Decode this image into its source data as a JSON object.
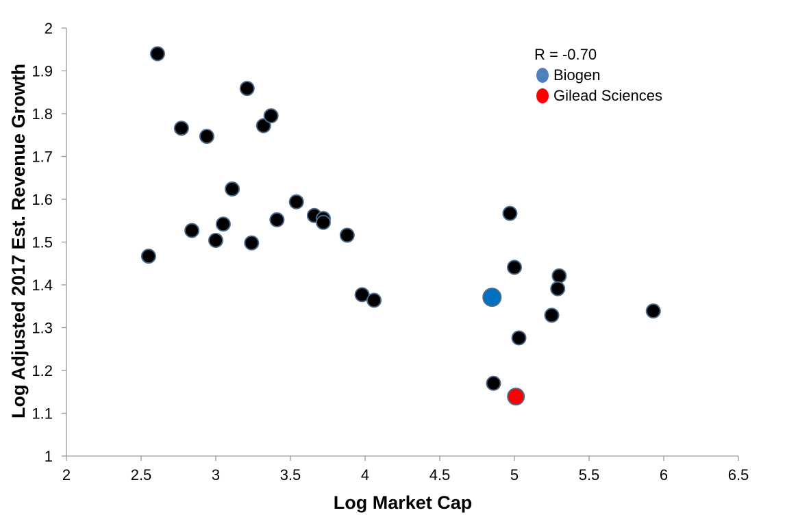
{
  "chart_data": {
    "type": "scatter",
    "title": "",
    "xlabel": "Log Market Cap",
    "ylabel": "Log Adjusted 2017 Est. Revenue Growth",
    "xlim": [
      2,
      6.5
    ],
    "ylim": [
      1,
      2
    ],
    "x_ticks": [
      "2",
      "2.5",
      "3",
      "3.5",
      "4",
      "4.5",
      "5",
      "5.5",
      "6",
      "6.5"
    ],
    "y_ticks": [
      "1",
      "1.1",
      "1.2",
      "1.3",
      "1.4",
      "1.5",
      "1.6",
      "1.7",
      "1.8",
      "1.9",
      "2"
    ],
    "grid": false,
    "legend_position": "top-right",
    "annotation": "R = -0.70",
    "colors": {
      "default_point": "#000000",
      "point_outline": "#4a6a8a",
      "biogen": "#0070c0",
      "gilead": "#ff0000",
      "biogen_legend": "#4f81bd"
    },
    "series": [
      {
        "points": [
          [
            2.55,
            1.467
          ],
          [
            2.61,
            1.94
          ],
          [
            2.77,
            1.766
          ],
          [
            2.84,
            1.527
          ],
          [
            2.94,
            1.747
          ],
          [
            3.0,
            1.504
          ],
          [
            3.05,
            1.542
          ],
          [
            3.11,
            1.624
          ],
          [
            3.21,
            1.859
          ],
          [
            3.24,
            1.498
          ],
          [
            3.32,
            1.772
          ],
          [
            3.37,
            1.795
          ],
          [
            3.41,
            1.552
          ],
          [
            3.54,
            1.594
          ],
          [
            3.66,
            1.562
          ],
          [
            3.72,
            1.555
          ],
          [
            3.72,
            1.546
          ],
          [
            3.88,
            1.516
          ],
          [
            3.98,
            1.377
          ],
          [
            4.06,
            1.364
          ],
          [
            4.97,
            1.567
          ],
          [
            5.0,
            1.441
          ],
          [
            5.3,
            1.421
          ],
          [
            5.29,
            1.391
          ],
          [
            5.25,
            1.329
          ],
          [
            5.03,
            1.276
          ],
          [
            4.86,
            1.17
          ],
          [
            5.93,
            1.339
          ]
        ]
      },
      {
        "name": "Biogen",
        "points": [
          [
            4.85,
            1.371
          ]
        ]
      },
      {
        "name": "Gilead Sciences",
        "points": [
          [
            5.01,
            1.139
          ]
        ]
      }
    ]
  }
}
